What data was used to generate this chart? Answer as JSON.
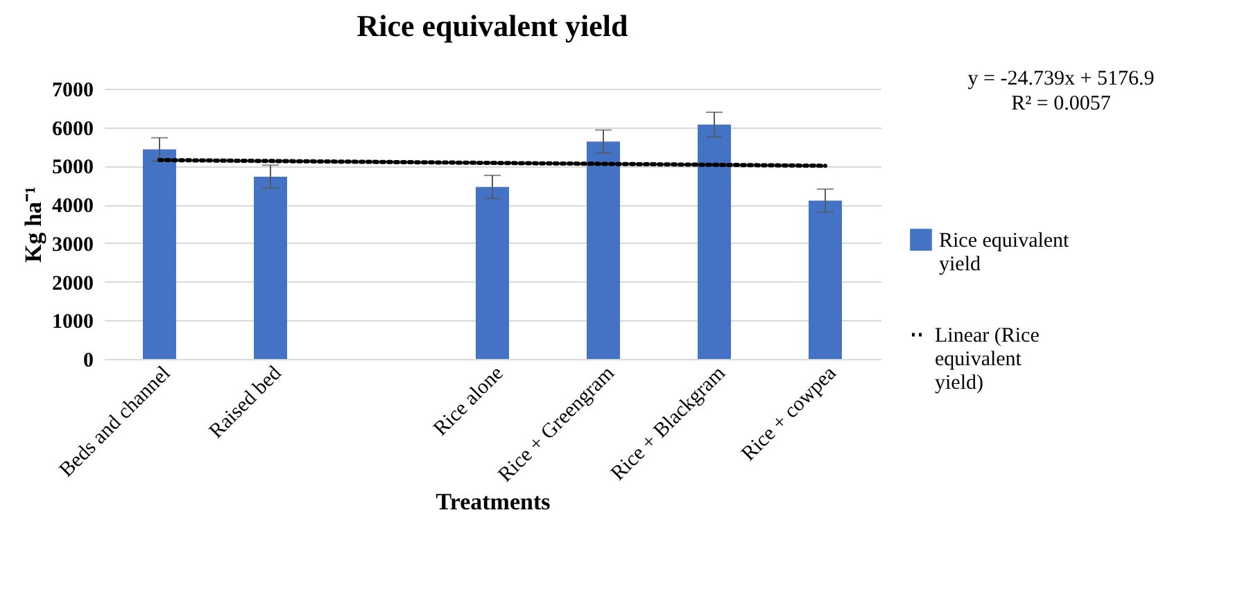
{
  "chart_data": {
    "type": "bar",
    "title": "Rice equivalent yield",
    "xlabel": "Treatments",
    "ylabel": "Kg ha⁻¹",
    "categories": [
      "Beds and channel",
      "Raised bed",
      null,
      "Rice alone",
      "Rice + Greengram",
      "Rice + Blackgram",
      "Rice + cowpea"
    ],
    "series": [
      {
        "name": "Rice equivalent yield",
        "color": "#4472c4",
        "values": [
          5430,
          4720,
          null,
          4455,
          5630,
          6070,
          4100
        ],
        "errors": [
          300,
          300,
          null,
          300,
          300,
          320,
          300
        ]
      },
      {
        "name": "Linear (Rice equivalent yield)",
        "type": "line",
        "color": "#000000",
        "line_style": "dotted",
        "x": [
          "Beds and channel",
          "Rice + cowpea"
        ],
        "values": [
          5152,
          5004
        ]
      }
    ],
    "ylim": [
      0,
      7000
    ],
    "yticks": [
      0,
      1000,
      2000,
      3000,
      4000,
      5000,
      6000,
      7000
    ],
    "grid": "y",
    "legend": "right",
    "annotations": [
      "y = -24.739x + 5176.9",
      "R² = 0.0057"
    ]
  }
}
